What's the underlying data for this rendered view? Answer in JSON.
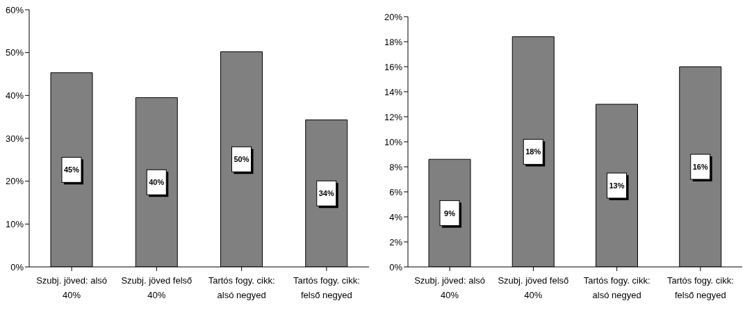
{
  "chart_data": [
    {
      "type": "bar",
      "categories": [
        "Szubj. jöved: alsó 40%",
        "Szubj. jöved felső 40%",
        "Tartós fogy. cikk: alsó negyed",
        "Tartós fogy. cikk: felső negyed"
      ],
      "values": [
        45.3,
        39.5,
        50.2,
        34.3
      ],
      "value_labels": [
        "45%",
        "40%",
        "50%",
        "34%"
      ],
      "color": "#808080",
      "ylim": [
        0,
        60
      ],
      "yticks": [
        {
          "value": 0,
          "label": "0%"
        },
        {
          "value": 10,
          "label": "10%"
        },
        {
          "value": 20,
          "label": "20%"
        },
        {
          "value": 30,
          "label": "30%"
        },
        {
          "value": 40,
          "label": "40%"
        },
        {
          "value": 50,
          "label": "50%"
        },
        {
          "value": 60,
          "label": "60%"
        }
      ],
      "grid": false
    },
    {
      "type": "bar",
      "categories": [
        "Szubj. jöved: alsó 40%",
        "Szubj. jöved felső 40%",
        "Tartós fogy. cikk: alsó negyed",
        "Tartós fogy. cikk: felső negyed"
      ],
      "values": [
        8.6,
        18.4,
        13.0,
        16.0
      ],
      "value_labels": [
        "9%",
        "18%",
        "13%",
        "16%"
      ],
      "color": "#808080",
      "ylim": [
        0,
        20
      ],
      "yticks": [
        {
          "value": 0,
          "label": "0%"
        },
        {
          "value": 2,
          "label": "2%"
        },
        {
          "value": 4,
          "label": "4%"
        },
        {
          "value": 6,
          "label": "6%"
        },
        {
          "value": 8,
          "label": "8%"
        },
        {
          "value": 10,
          "label": "10%"
        },
        {
          "value": 12,
          "label": "12%"
        },
        {
          "value": 14,
          "label": "14%"
        },
        {
          "value": 16,
          "label": "16%"
        },
        {
          "value": 18,
          "label": "18%"
        },
        {
          "value": 20,
          "label": "20%"
        }
      ],
      "grid": false
    }
  ]
}
